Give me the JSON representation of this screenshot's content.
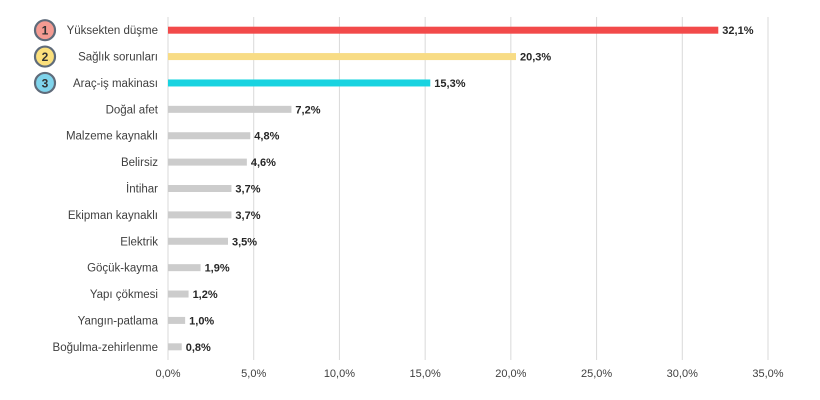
{
  "chart_data": {
    "type": "bar",
    "orientation": "horizontal",
    "categories": [
      "Yüksekten düşme",
      "Sağlık sorunları",
      "Araç-iş makinası",
      "Doğal afet",
      "Malzeme kaynaklı",
      "Belirsiz",
      "İntihar",
      "Ekipman kaynaklı",
      "Elektrik",
      "Göçük-kayma",
      "Yapı çökmesi",
      "Yangın-patlama",
      "Boğulma-zehirlenme"
    ],
    "values": [
      32.1,
      20.3,
      15.3,
      7.2,
      4.8,
      4.6,
      3.7,
      3.7,
      3.5,
      1.9,
      1.2,
      1.0,
      0.8
    ],
    "value_labels": [
      "32,1%",
      "20,3%",
      "15,3%",
      "7,2%",
      "4,8%",
      "4,6%",
      "3,7%",
      "3,7%",
      "3,5%",
      "1,9%",
      "1,2%",
      "1,0%",
      "0,8%"
    ],
    "bar_colors": [
      "#f24a4a",
      "#f8dc85",
      "#19d3e0",
      "#cccccc",
      "#cccccc",
      "#cccccc",
      "#cccccc",
      "#cccccc",
      "#cccccc",
      "#cccccc",
      "#cccccc",
      "#cccccc",
      "#cccccc"
    ],
    "ranks": [
      {
        "number": "1",
        "fill": "#f49b92",
        "stroke": "#5f6b7a"
      },
      {
        "number": "2",
        "fill": "#fbe07c",
        "stroke": "#5f6b7a"
      },
      {
        "number": "3",
        "fill": "#7fd4ec",
        "stroke": "#5f6b7a"
      }
    ],
    "xlim": [
      0,
      35
    ],
    "xticks": [
      0,
      5,
      10,
      15,
      20,
      25,
      30,
      35
    ],
    "xtick_labels": [
      "0,0%",
      "5,0%",
      "10,0%",
      "15,0%",
      "20,0%",
      "25,0%",
      "30,0%",
      "35,0%"
    ],
    "grid": true,
    "title": "",
    "xlabel": "",
    "ylabel": ""
  }
}
